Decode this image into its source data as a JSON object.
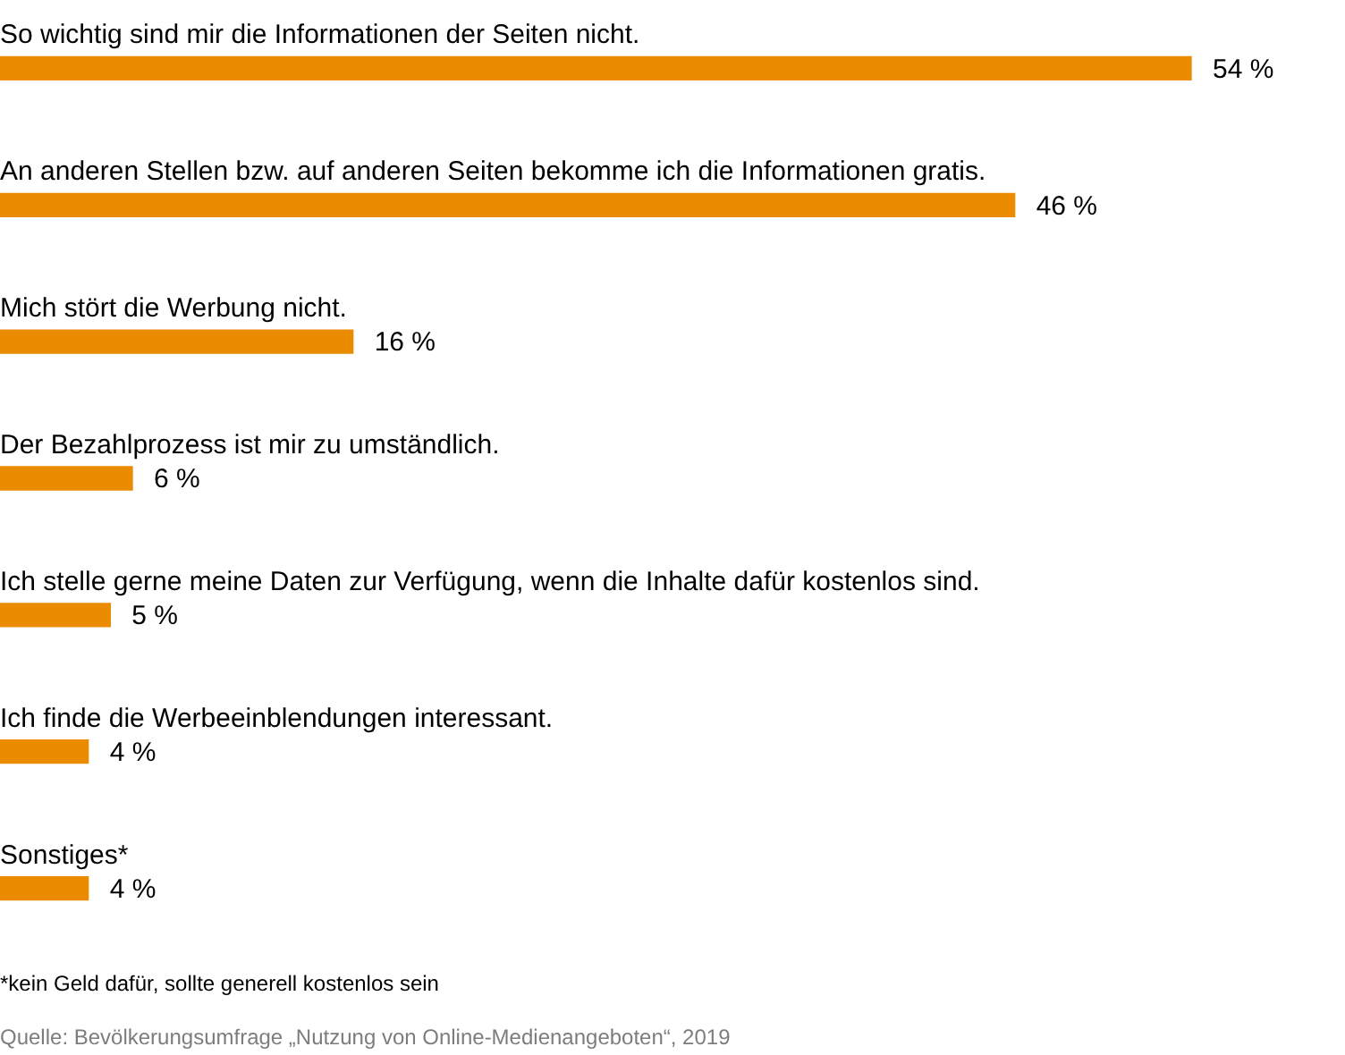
{
  "chart_data": {
    "type": "bar",
    "orientation": "horizontal",
    "categories": [
      "So wichtig sind mir die Informationen der Seiten nicht.",
      "An anderen Stellen bzw. auf anderen Seiten bekomme ich die Informationen gratis.",
      "Mich stört die Werbung nicht.",
      "Der Bezahlprozess ist mir zu umständlich.",
      "Ich stelle gerne meine Daten zur Verfügung, wenn die Inhalte dafür kostenlos sind.",
      "Ich finde die Werbeeinblendungen interessant.",
      "Sonstiges*"
    ],
    "values": [
      54,
      46,
      16,
      6,
      5,
      4,
      4
    ],
    "color": "#eb8c00",
    "value_labels": [
      "54 %",
      "46 %",
      "16 %",
      "6 %",
      "5 %",
      "4 %",
      "4 %"
    ],
    "annotations": [
      "*kein Geld dafür, sollte generell kostenlos sein",
      "Quelle: Bevölkerungsumfrage „Nutzung von Online-Medienangeboten“, 2019"
    ]
  }
}
